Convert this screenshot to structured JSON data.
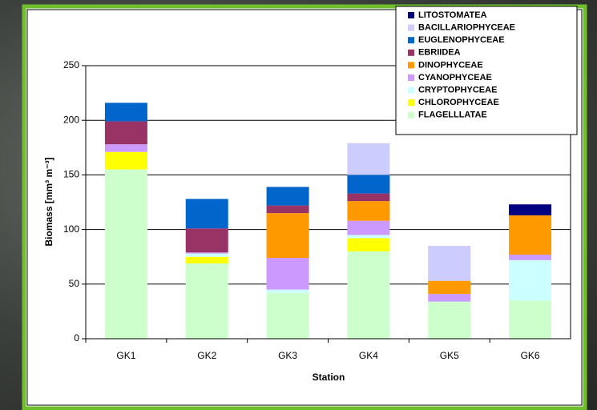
{
  "chart_data": {
    "type": "stacked_bar",
    "x_label": "Station",
    "y_label": "Biomass [mm³ m⁻³]",
    "categories": [
      "GK1",
      "GK2",
      "GK3",
      "GK4",
      "GK5",
      "GK6"
    ],
    "ylim": [
      0,
      250
    ],
    "yticks": [
      0,
      50,
      100,
      150,
      200,
      250
    ],
    "grid": true,
    "series": [
      {
        "name": "FLAGELLLATAE",
        "color": "#ccffcc",
        "values": [
          155,
          69,
          42,
          80,
          34,
          35
        ]
      },
      {
        "name": "CHLOROPHYCEAE",
        "color": "#ffff00",
        "values": [
          16,
          6,
          0,
          12,
          0,
          0
        ]
      },
      {
        "name": "CRYPTOPHYCEAE",
        "color": "#ccffff",
        "values": [
          0,
          3,
          3,
          3,
          0,
          37
        ]
      },
      {
        "name": "CYANOPHYCEAE",
        "color": "#cc99ff",
        "values": [
          7,
          1,
          29,
          13,
          7,
          5
        ]
      },
      {
        "name": "DINOPHYCEAE",
        "color": "#ff9900",
        "values": [
          0,
          0,
          41,
          18,
          12,
          36
        ]
      },
      {
        "name": "EBRIIDEA",
        "color": "#993366",
        "values": [
          21,
          22,
          7,
          7,
          0,
          0
        ]
      },
      {
        "name": "EUGLENOPHYCEAE",
        "color": "#0066cc",
        "values": [
          17,
          27,
          17,
          17,
          0,
          0
        ]
      },
      {
        "name": "BACILLARIOPHYCEAE",
        "color": "#ccccff",
        "values": [
          0,
          0,
          0,
          29,
          32,
          0
        ]
      },
      {
        "name": "LITOSTOMATEA",
        "color": "#000080",
        "values": [
          0,
          0,
          0,
          0,
          0,
          10
        ]
      }
    ]
  }
}
